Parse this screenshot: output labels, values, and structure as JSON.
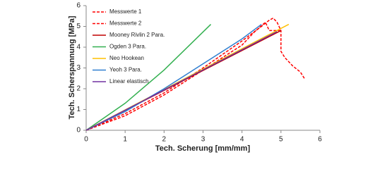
{
  "chart_data": {
    "type": "line",
    "xlabel": "Tech. Scherung [mm/mm]",
    "ylabel": "Tech. Scherspannung [MPa]",
    "xlim": [
      0,
      6
    ],
    "ylim": [
      0,
      6
    ],
    "xticks": [
      0,
      1,
      2,
      3,
      4,
      5,
      6
    ],
    "yticks": [
      0,
      1,
      2,
      3,
      4,
      5,
      6
    ],
    "grid": false,
    "series": [
      {
        "name": "Messwerte 1",
        "color": "#ff0000",
        "dash": true,
        "x": [
          0,
          1,
          2,
          3,
          4,
          4.5,
          4.7,
          4.8,
          4.9,
          5.0,
          5.0,
          5.1,
          5.3,
          5.5,
          5.6
        ],
        "values": [
          0,
          0.8,
          1.8,
          3.0,
          4.3,
          5.0,
          5.3,
          5.4,
          5.2,
          4.8,
          3.8,
          3.5,
          3.1,
          2.8,
          2.5
        ]
      },
      {
        "name": "Messwerte 2",
        "color": "#ff0000",
        "dash": true,
        "x": [
          0,
          1,
          2,
          3,
          4,
          4.3,
          4.6,
          4.7,
          5.0
        ],
        "values": [
          0,
          0.7,
          1.7,
          2.9,
          4.1,
          4.7,
          5.2,
          4.8,
          4.8
        ]
      },
      {
        "name": "Mooney Rivlin 2 Para.",
        "color": "#c00000",
        "dash": false,
        "x": [
          0,
          5
        ],
        "values": [
          0,
          4.8
        ]
      },
      {
        "name": "Ogden 3 Para.",
        "color": "#33b050",
        "dash": false,
        "x": [
          0,
          1,
          2,
          3.2
        ],
        "values": [
          0,
          1.3,
          2.9,
          5.1
        ]
      },
      {
        "name": "Neo Hookean",
        "color": "#ffc000",
        "dash": false,
        "x": [
          0,
          5.2
        ],
        "values": [
          0,
          5.1
        ]
      },
      {
        "name": "Yeoh 3 Para.",
        "color": "#2f7fd0",
        "dash": false,
        "x": [
          0,
          1,
          2,
          3,
          4,
          4.5
        ],
        "values": [
          0,
          0.9,
          2.0,
          3.2,
          4.4,
          5.1
        ]
      },
      {
        "name": "Linear elastisch",
        "color": "#7030a0",
        "dash": false,
        "x": [
          0,
          4.9
        ],
        "values": [
          0,
          4.75
        ]
      }
    ]
  }
}
